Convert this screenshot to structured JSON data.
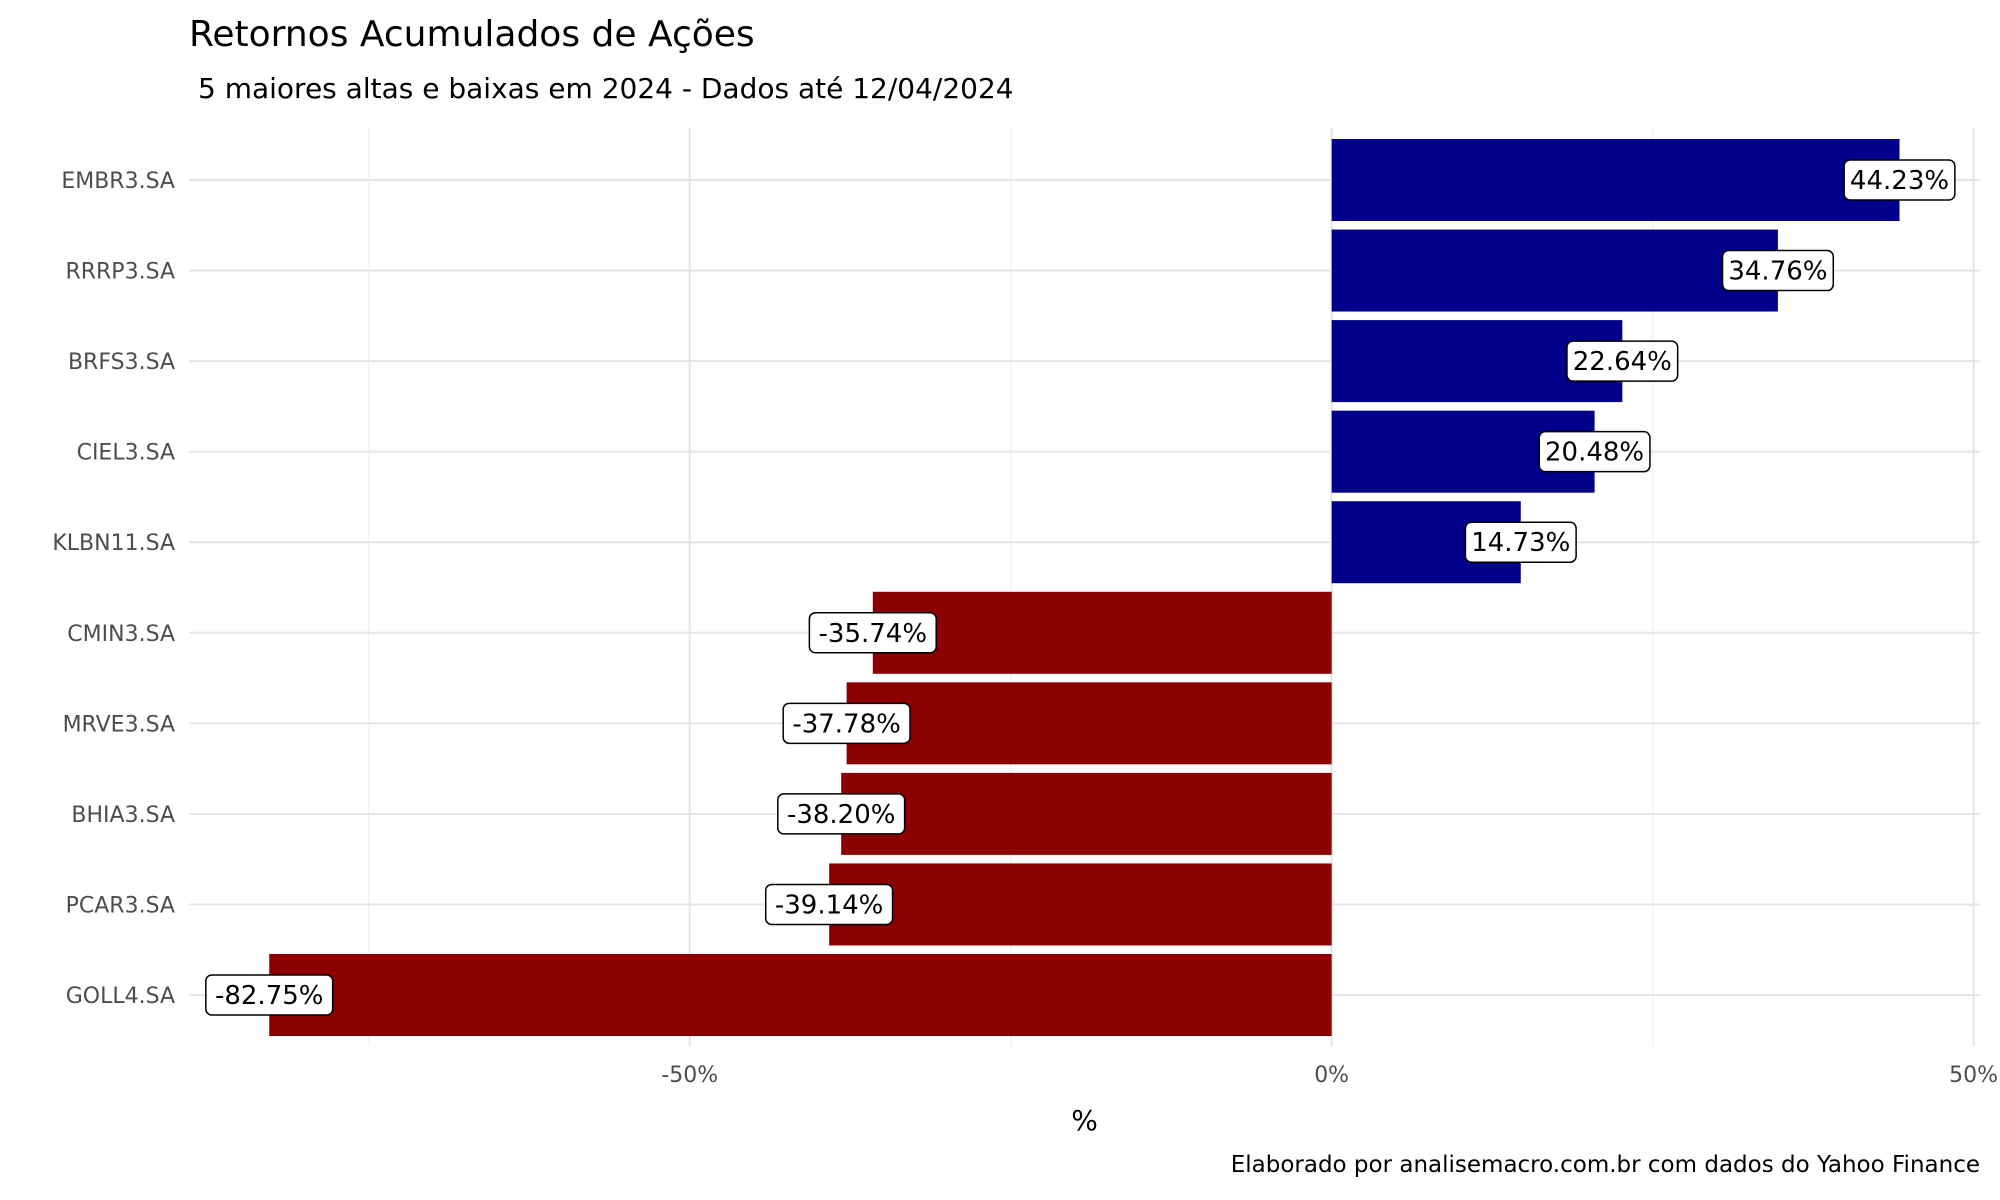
{
  "chart_data": {
    "type": "bar",
    "orientation": "horizontal",
    "title": "Retornos Acumulados de Ações",
    "subtitle": "5 maiores altas e baixas em 2024 - Dados até 12/04/2024",
    "caption": "Elaborado por analisemacro.com.br com dados do Yahoo Finance",
    "xlabel": "%",
    "ylabel": "",
    "categories": [
      "EMBR3.SA",
      "RRRP3.SA",
      "BRFS3.SA",
      "CIEL3.SA",
      "KLBN11.SA",
      "CMIN3.SA",
      "MRVE3.SA",
      "BHIA3.SA",
      "PCAR3.SA",
      "GOLL4.SA"
    ],
    "values": [
      44.23,
      34.76,
      22.64,
      20.48,
      14.73,
      -35.74,
      -37.78,
      -38.2,
      -39.14,
      -82.75
    ],
    "data_labels": [
      "44.23%",
      "34.76%",
      "22.64%",
      "20.48%",
      "14.73%",
      "-35.74%",
      "-37.78%",
      "-38.20%",
      "-39.14%",
      "-82.75%"
    ],
    "xlim": [
      -89,
      50.5
    ],
    "x_ticks": [
      -50,
      0,
      50
    ],
    "x_tick_labels": [
      "-50%",
      "0%",
      "50%"
    ],
    "grid": true,
    "colors": {
      "positive": "#00008b",
      "negative": "#8b0000",
      "grid_major": "#e5e5e5",
      "grid_minor": "#f2f2f2"
    }
  }
}
